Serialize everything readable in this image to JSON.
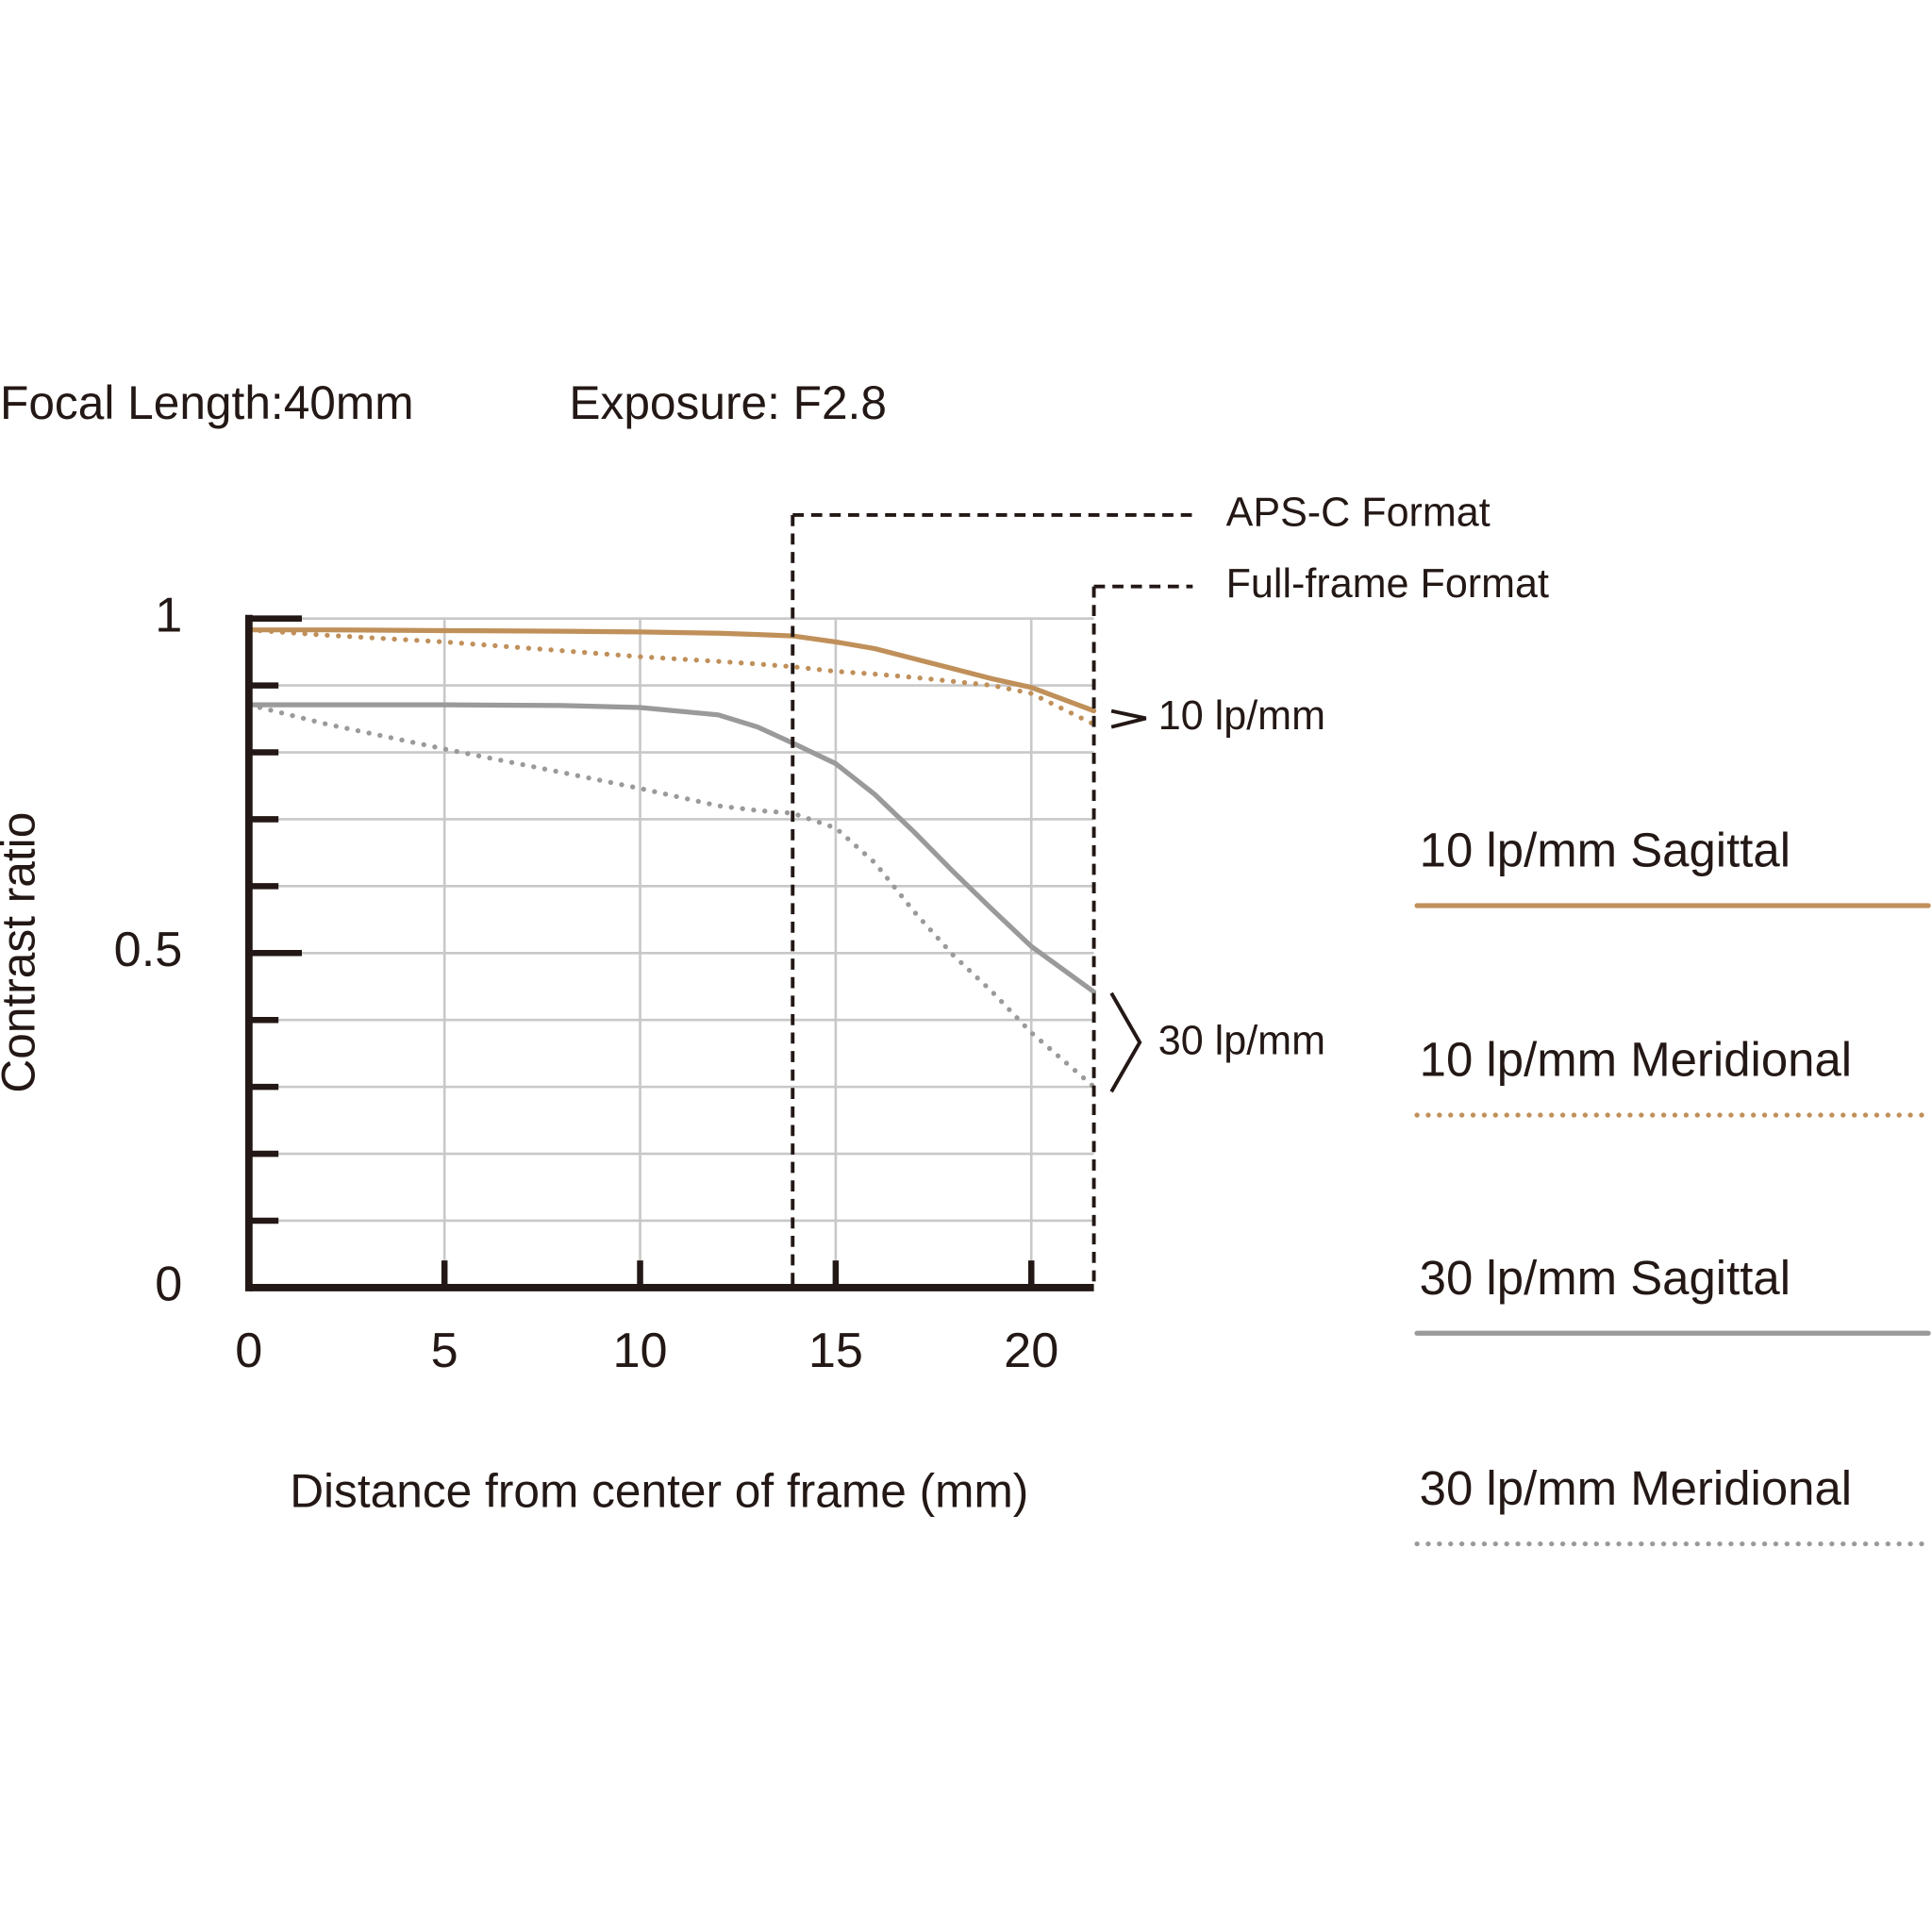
{
  "chart_data": {
    "type": "line",
    "title": "Focal Length:40mm",
    "subtitle": "Exposure: F2.8",
    "x_label": "Distance from center of frame (mm)",
    "y_label": "Contrast ratio",
    "x": [
      0,
      2,
      5,
      8,
      10,
      12,
      13,
      13.9,
      15,
      16,
      17,
      18,
      19,
      20,
      21.6
    ],
    "series": [
      {
        "name": "10 lp/mm Sagittal",
        "color": "#c0905a",
        "dotted": false,
        "values": [
          0.983,
          0.983,
          0.982,
          0.981,
          0.98,
          0.978,
          0.976,
          0.974,
          0.965,
          0.955,
          0.94,
          0.925,
          0.91,
          0.897,
          0.862
        ]
      },
      {
        "name": "10 lp/mm Meridional",
        "color": "#c0905a",
        "dotted": true,
        "values": [
          0.983,
          0.975,
          0.965,
          0.952,
          0.943,
          0.936,
          0.932,
          0.928,
          0.921,
          0.917,
          0.912,
          0.906,
          0.9,
          0.888,
          0.842
        ]
      },
      {
        "name": "30 lp/mm Sagittal",
        "color": "#9a9a9a",
        "dotted": false,
        "values": [
          0.871,
          0.871,
          0.871,
          0.87,
          0.867,
          0.856,
          0.838,
          0.814,
          0.783,
          0.737,
          0.681,
          0.622,
          0.565,
          0.51,
          0.442
        ]
      },
      {
        "name": "30 lp/mm Meridional",
        "color": "#9a9a9a",
        "dotted": true,
        "values": [
          0.871,
          0.842,
          0.805,
          0.77,
          0.746,
          0.72,
          0.713,
          0.709,
          0.687,
          0.635,
          0.562,
          0.497,
          0.442,
          0.381,
          0.3
        ]
      }
    ],
    "xlim": [
      0,
      21.6
    ],
    "ylim": [
      0,
      1
    ],
    "xticks": [
      0,
      5,
      10,
      15,
      20
    ],
    "yticks": [
      0,
      0.5,
      1
    ],
    "yminor_ticks": [
      0.1,
      0.2,
      0.3,
      0.4,
      0.6,
      0.7,
      0.8,
      0.9
    ],
    "grid": true,
    "format_lines": [
      {
        "label": "APS-C Format",
        "x": 13.9
      },
      {
        "label": "Full-frame Format",
        "x": 21.6
      }
    ],
    "annotations": [
      "10 lp/mm",
      "30 lp/mm"
    ]
  }
}
